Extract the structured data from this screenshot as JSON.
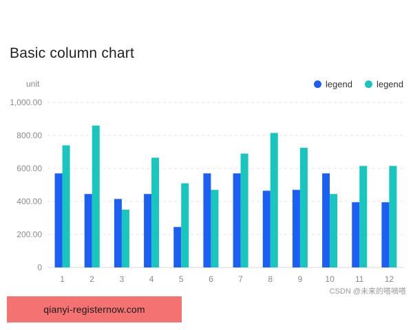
{
  "chart_data": {
    "type": "bar",
    "title": "Basic column chart",
    "unit_label": "unit",
    "categories": [
      "1",
      "2",
      "3",
      "4",
      "5",
      "6",
      "7",
      "8",
      "9",
      "10",
      "11",
      "12"
    ],
    "series": [
      {
        "name": "legend",
        "color": "#1d5ff2",
        "values": [
          570,
          445,
          415,
          445,
          245,
          570,
          570,
          465,
          470,
          570,
          395,
          395
        ]
      },
      {
        "name": "legend",
        "color": "#19c6be",
        "values": [
          740,
          860,
          350,
          665,
          510,
          470,
          690,
          815,
          725,
          445,
          615,
          615
        ]
      }
    ],
    "ylim": [
      0,
      1000
    ],
    "yticks": [
      0,
      200,
      400,
      600,
      800,
      1000
    ],
    "ytick_labels": [
      "0",
      "200.00",
      "400.00",
      "600.00",
      "800.00",
      "1,000.00"
    ],
    "grid": true,
    "legend_position": "top-right"
  },
  "watermark": "CSDN @未来的嗒嘀嗒",
  "promo_text": "qianyi-registernow.com"
}
